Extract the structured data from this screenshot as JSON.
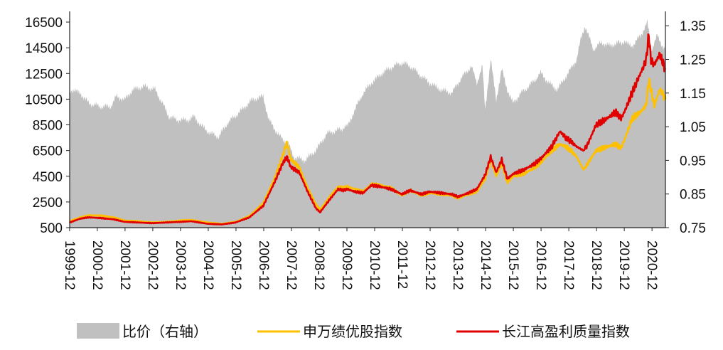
{
  "chart_data": {
    "type": "line",
    "title": "",
    "xlabel": "",
    "ylabel": "",
    "y_left": {
      "ylim": [
        500,
        17000
      ],
      "ticks": [
        500,
        2500,
        4500,
        6500,
        8500,
        10500,
        12500,
        14500,
        16500
      ]
    },
    "y_right": {
      "ylim": [
        0.75,
        1.38
      ],
      "ticks": [
        "0.75",
        "0.85",
        "0.95",
        "1.05",
        "1.15",
        "1.25",
        "1.35"
      ]
    },
    "xlim": [
      1999.92,
      2021.4
    ],
    "x_ticks": [
      "1999-12",
      "2000-12",
      "2001-12",
      "2002-12",
      "2003-12",
      "2004-12",
      "2005-12",
      "2006-12",
      "2007-12",
      "2008-12",
      "2009-12",
      "2010-12",
      "2011-12",
      "2012-12",
      "2013-12",
      "2014-12",
      "2015-12",
      "2016-12",
      "2017-12",
      "2018-12",
      "2019-12",
      "2020-12"
    ],
    "grid": false,
    "legend_position": "bottom",
    "series": [
      {
        "name": "比价（右轴）",
        "type": "area",
        "axis": "right",
        "color": "#c0c0c0",
        "points": [
          [
            1999.92,
            1.16
          ],
          [
            2000.3,
            1.15
          ],
          [
            2000.6,
            1.12
          ],
          [
            2001.0,
            1.11
          ],
          [
            2001.4,
            1.11
          ],
          [
            2001.6,
            1.14
          ],
          [
            2001.9,
            1.13
          ],
          [
            2002.2,
            1.16
          ],
          [
            2002.6,
            1.17
          ],
          [
            2003.0,
            1.16
          ],
          [
            2003.2,
            1.13
          ],
          [
            2003.5,
            1.08
          ],
          [
            2003.8,
            1.07
          ],
          [
            2004.2,
            1.07
          ],
          [
            2004.4,
            1.08
          ],
          [
            2004.7,
            1.05
          ],
          [
            2005.0,
            1.03
          ],
          [
            2005.3,
            1.02
          ],
          [
            2005.6,
            1.06
          ],
          [
            2006.0,
            1.09
          ],
          [
            2006.5,
            1.13
          ],
          [
            2006.9,
            1.14
          ],
          [
            2007.1,
            1.07
          ],
          [
            2007.5,
            1.02
          ],
          [
            2007.8,
            1.0
          ],
          [
            2008.0,
            0.96
          ],
          [
            2008.4,
            0.95
          ],
          [
            2008.8,
            0.98
          ],
          [
            2009.2,
            1.03
          ],
          [
            2009.6,
            1.04
          ],
          [
            2009.92,
            1.05
          ],
          [
            2010.2,
            1.1
          ],
          [
            2010.5,
            1.15
          ],
          [
            2010.8,
            1.18
          ],
          [
            2011.2,
            1.21
          ],
          [
            2011.6,
            1.23
          ],
          [
            2011.9,
            1.24
          ],
          [
            2012.2,
            1.23
          ],
          [
            2012.6,
            1.2
          ],
          [
            2012.9,
            1.18
          ],
          [
            2013.3,
            1.16
          ],
          [
            2013.7,
            1.15
          ],
          [
            2014.0,
            1.19
          ],
          [
            2014.4,
            1.23
          ],
          [
            2014.6,
            1.18
          ],
          [
            2014.8,
            1.23
          ],
          [
            2014.9,
            1.1
          ],
          [
            2015.1,
            1.25
          ],
          [
            2015.3,
            1.13
          ],
          [
            2015.5,
            1.22
          ],
          [
            2015.7,
            1.16
          ],
          [
            2015.9,
            1.12
          ],
          [
            2016.2,
            1.15
          ],
          [
            2016.6,
            1.18
          ],
          [
            2016.9,
            1.21
          ],
          [
            2017.2,
            1.18
          ],
          [
            2017.5,
            1.16
          ],
          [
            2017.9,
            1.21
          ],
          [
            2018.2,
            1.25
          ],
          [
            2018.35,
            1.31
          ],
          [
            2018.5,
            1.35
          ],
          [
            2018.8,
            1.28
          ],
          [
            2019.1,
            1.3
          ],
          [
            2019.4,
            1.29
          ],
          [
            2019.7,
            1.3
          ],
          [
            2019.92,
            1.3
          ],
          [
            2020.2,
            1.29
          ],
          [
            2020.5,
            1.32
          ],
          [
            2020.75,
            1.36
          ],
          [
            2020.9,
            1.28
          ],
          [
            2021.1,
            1.32
          ],
          [
            2021.3,
            1.29
          ],
          [
            2021.4,
            1.28
          ]
        ]
      },
      {
        "name": "申万绩优股指数",
        "type": "line",
        "axis": "left",
        "color": "#ffc000",
        "points": [
          [
            1999.92,
            1000
          ],
          [
            2000.3,
            1300
          ],
          [
            2000.6,
            1450
          ],
          [
            2001.0,
            1450
          ],
          [
            2001.5,
            1300
          ],
          [
            2001.9,
            1050
          ],
          [
            2002.4,
            1000
          ],
          [
            2002.9,
            900
          ],
          [
            2003.4,
            950
          ],
          [
            2003.9,
            1050
          ],
          [
            2004.3,
            1100
          ],
          [
            2004.9,
            900
          ],
          [
            2005.4,
            800
          ],
          [
            2005.9,
            950
          ],
          [
            2006.4,
            1400
          ],
          [
            2006.9,
            2400
          ],
          [
            2007.3,
            4300
          ],
          [
            2007.6,
            6100
          ],
          [
            2007.75,
            7100
          ],
          [
            2007.9,
            5800
          ],
          [
            2008.2,
            5200
          ],
          [
            2008.5,
            3600
          ],
          [
            2008.8,
            2300
          ],
          [
            2008.95,
            1900
          ],
          [
            2009.3,
            2900
          ],
          [
            2009.6,
            3700
          ],
          [
            2009.8,
            3600
          ],
          [
            2009.92,
            3700
          ],
          [
            2010.2,
            3500
          ],
          [
            2010.5,
            3300
          ],
          [
            2010.8,
            3900
          ],
          [
            2011.1,
            3800
          ],
          [
            2011.5,
            3600
          ],
          [
            2011.9,
            3000
          ],
          [
            2012.2,
            3400
          ],
          [
            2012.6,
            3000
          ],
          [
            2012.9,
            3200
          ],
          [
            2013.3,
            3100
          ],
          [
            2013.7,
            3000
          ],
          [
            2013.92,
            2800
          ],
          [
            2014.3,
            3100
          ],
          [
            2014.6,
            3300
          ],
          [
            2014.9,
            4300
          ],
          [
            2015.1,
            5800
          ],
          [
            2015.3,
            4500
          ],
          [
            2015.5,
            5500
          ],
          [
            2015.7,
            4000
          ],
          [
            2015.92,
            4500
          ],
          [
            2016.3,
            4700
          ],
          [
            2016.7,
            5200
          ],
          [
            2016.92,
            5600
          ],
          [
            2017.3,
            6500
          ],
          [
            2017.6,
            7000
          ],
          [
            2017.8,
            6800
          ],
          [
            2018.0,
            6500
          ],
          [
            2018.2,
            6000
          ],
          [
            2018.45,
            5000
          ],
          [
            2018.6,
            5500
          ],
          [
            2018.9,
            6500
          ],
          [
            2019.3,
            6800
          ],
          [
            2019.6,
            7000
          ],
          [
            2019.8,
            6700
          ],
          [
            2019.92,
            7300
          ],
          [
            2020.2,
            9000
          ],
          [
            2020.5,
            9500
          ],
          [
            2020.7,
            10000
          ],
          [
            2020.8,
            12000
          ],
          [
            2020.88,
            11200
          ],
          [
            2021.0,
            10000
          ],
          [
            2021.2,
            11300
          ],
          [
            2021.4,
            10500
          ]
        ]
      },
      {
        "name": "长江高盈利质量指数",
        "type": "line",
        "axis": "left",
        "color": "#e00000",
        "points": [
          [
            1999.92,
            900
          ],
          [
            2000.3,
            1200
          ],
          [
            2000.6,
            1300
          ],
          [
            2001.0,
            1250
          ],
          [
            2001.5,
            1150
          ],
          [
            2001.9,
            950
          ],
          [
            2002.4,
            900
          ],
          [
            2002.9,
            850
          ],
          [
            2003.4,
            900
          ],
          [
            2003.9,
            950
          ],
          [
            2004.3,
            1000
          ],
          [
            2004.9,
            800
          ],
          [
            2005.4,
            750
          ],
          [
            2005.9,
            900
          ],
          [
            2006.4,
            1300
          ],
          [
            2006.9,
            2200
          ],
          [
            2007.3,
            4000
          ],
          [
            2007.6,
            5500
          ],
          [
            2007.75,
            6000
          ],
          [
            2007.9,
            5200
          ],
          [
            2008.2,
            4800
          ],
          [
            2008.5,
            3300
          ],
          [
            2008.8,
            2000
          ],
          [
            2008.95,
            1700
          ],
          [
            2009.3,
            2700
          ],
          [
            2009.6,
            3500
          ],
          [
            2009.8,
            3400
          ],
          [
            2009.92,
            3500
          ],
          [
            2010.2,
            3300
          ],
          [
            2010.5,
            3200
          ],
          [
            2010.8,
            3800
          ],
          [
            2011.1,
            3700
          ],
          [
            2011.5,
            3500
          ],
          [
            2011.9,
            3100
          ],
          [
            2012.2,
            3400
          ],
          [
            2012.6,
            3100
          ],
          [
            2012.9,
            3300
          ],
          [
            2013.3,
            3200
          ],
          [
            2013.7,
            3100
          ],
          [
            2013.92,
            2900
          ],
          [
            2014.3,
            3200
          ],
          [
            2014.6,
            3500
          ],
          [
            2014.9,
            4600
          ],
          [
            2015.1,
            6000
          ],
          [
            2015.3,
            4800
          ],
          [
            2015.5,
            5800
          ],
          [
            2015.7,
            4300
          ],
          [
            2015.92,
            4700
          ],
          [
            2016.3,
            5000
          ],
          [
            2016.7,
            5500
          ],
          [
            2016.92,
            5900
          ],
          [
            2017.3,
            6800
          ],
          [
            2017.6,
            8000
          ],
          [
            2017.8,
            7500
          ],
          [
            2018.0,
            7200
          ],
          [
            2018.2,
            6800
          ],
          [
            2018.45,
            6500
          ],
          [
            2018.6,
            7000
          ],
          [
            2018.9,
            8500
          ],
          [
            2019.3,
            9000
          ],
          [
            2019.6,
            9500
          ],
          [
            2019.8,
            9000
          ],
          [
            2019.92,
            9500
          ],
          [
            2020.2,
            11000
          ],
          [
            2020.5,
            12500
          ],
          [
            2020.7,
            13500
          ],
          [
            2020.8,
            15500
          ],
          [
            2020.88,
            13500
          ],
          [
            2021.0,
            13200
          ],
          [
            2021.2,
            14000
          ],
          [
            2021.4,
            12800
          ]
        ]
      }
    ]
  }
}
